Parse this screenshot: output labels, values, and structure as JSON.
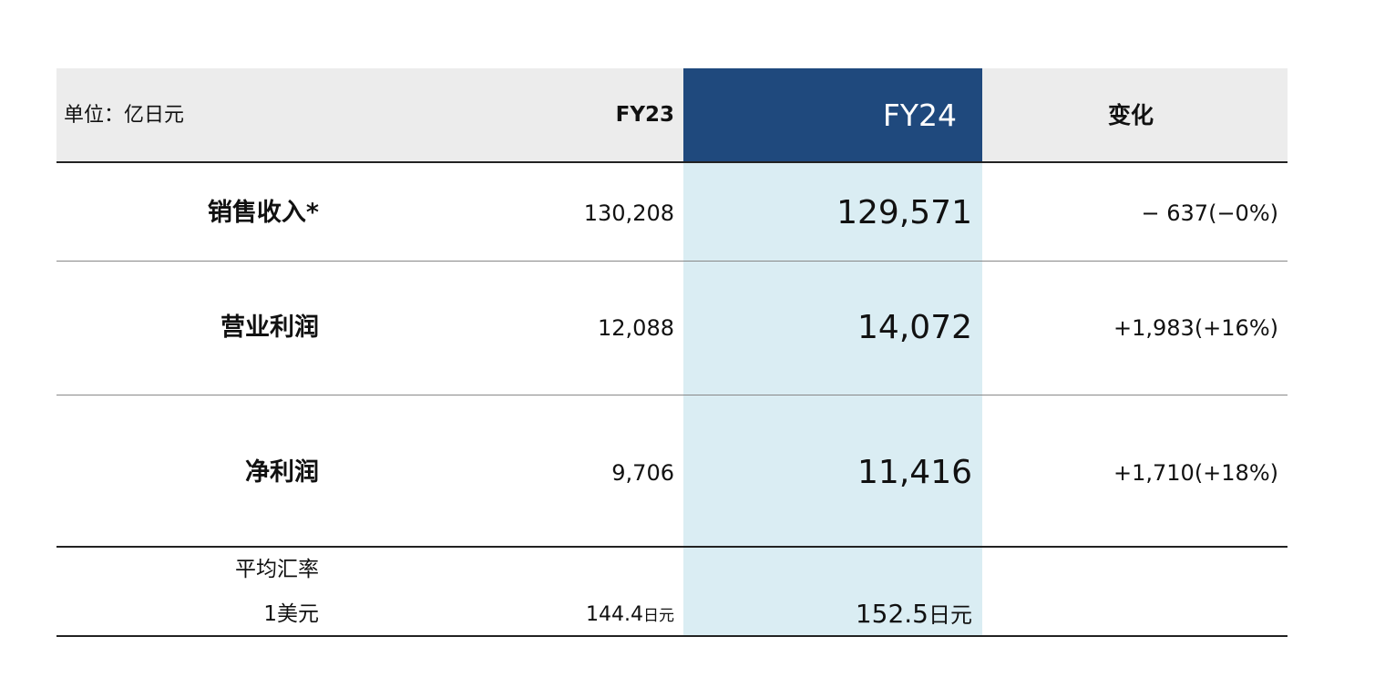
{
  "table": {
    "unit_label": "单位：亿日元",
    "columns": [
      "FY23",
      "FY24",
      "变化"
    ],
    "rows": [
      {
        "label": "销售收入*",
        "fy23": "130,208",
        "fy24": "129,571",
        "change": "− 637(−0%)"
      },
      {
        "label": "营业利润",
        "fy23": "12,088",
        "fy24": "14,072",
        "change": "+1,983(+16%)"
      },
      {
        "label": "净利润",
        "fy23": "9,706",
        "fy24": "11,416",
        "change": "+1,710(+18%)"
      }
    ],
    "fx": {
      "label": [
        "平均汇率",
        "1美元"
      ],
      "fy23": {
        "value": "144.4",
        "unit": "日元"
      },
      "fy24": {
        "value": "152.5",
        "unit": "日元"
      }
    }
  }
}
